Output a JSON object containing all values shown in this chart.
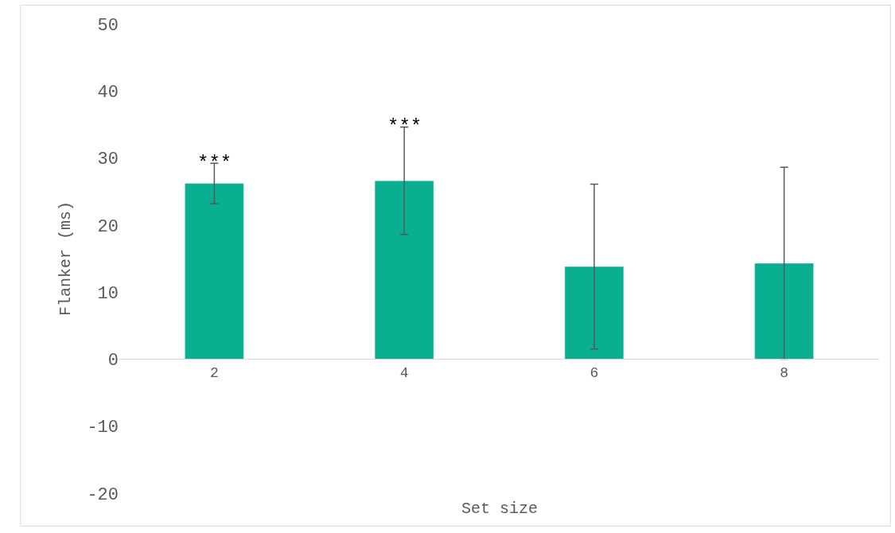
{
  "chart_data": {
    "type": "bar",
    "xlabel": "Set size",
    "ylabel": "Flanker (ms)",
    "categories": [
      "2",
      "4",
      "6",
      "8"
    ],
    "values": [
      26.2,
      26.6,
      13.8,
      14.3
    ],
    "errors": [
      3,
      8,
      12.3,
      14.3
    ],
    "color": "#0aaf92",
    "ylim": [
      -20,
      50
    ],
    "yticks": [
      -20,
      -10,
      0,
      10,
      20,
      30,
      40,
      50
    ],
    "annotations": [
      {
        "text": "***",
        "x": "2",
        "y": 29.2
      },
      {
        "text": "***",
        "x": "4",
        "y": 34.6
      }
    ]
  }
}
